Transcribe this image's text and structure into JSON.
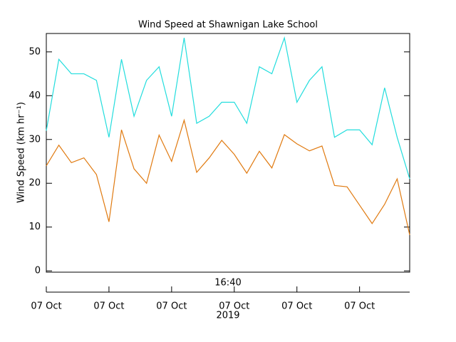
{
  "chart_data": {
    "type": "line",
    "title": "Wind Speed at Shawnigan Lake School",
    "y_label": "Wind Speed (km hr⁻¹)",
    "x_time_label": "16:40",
    "x_year_label": "2019",
    "categories": [
      "07 Oct",
      null,
      null,
      null,
      null,
      "07 Oct",
      null,
      null,
      null,
      null,
      "07 Oct",
      null,
      null,
      null,
      null,
      "07 Oct",
      null,
      null,
      null,
      null,
      "07 Oct",
      null,
      null,
      null,
      null,
      "07 Oct",
      null,
      null,
      null,
      null
    ],
    "series": [
      {
        "color": "#22dddd",
        "values": [
          32,
          48.3,
          45,
          45,
          43.5,
          30.5,
          48.3,
          35.3,
          43.5,
          46.6,
          35.3,
          53.2,
          33.7,
          35.3,
          38.5,
          38.5,
          33.7,
          46.6,
          45,
          53.2,
          38.5,
          43.5,
          46.6,
          30.5,
          32.2,
          32.2,
          28.8,
          41.8,
          30.5,
          21
        ]
      },
      {
        "color": "#e07a10",
        "values": [
          24,
          28.7,
          24.7,
          25.8,
          22,
          11.2,
          32.2,
          23.3,
          20,
          31,
          25,
          34.4,
          22.5,
          25.8,
          29.8,
          26.6,
          22.3,
          27.3,
          23.5,
          31.1,
          29,
          27.4,
          28.5,
          19.5,
          19.2,
          15,
          10.8,
          15.2,
          21,
          8.2
        ]
      }
    ],
    "ylim": [
      -0.3,
      54.2
    ],
    "yticks": [
      0,
      10,
      20,
      30,
      40,
      50
    ],
    "grid": false
  }
}
